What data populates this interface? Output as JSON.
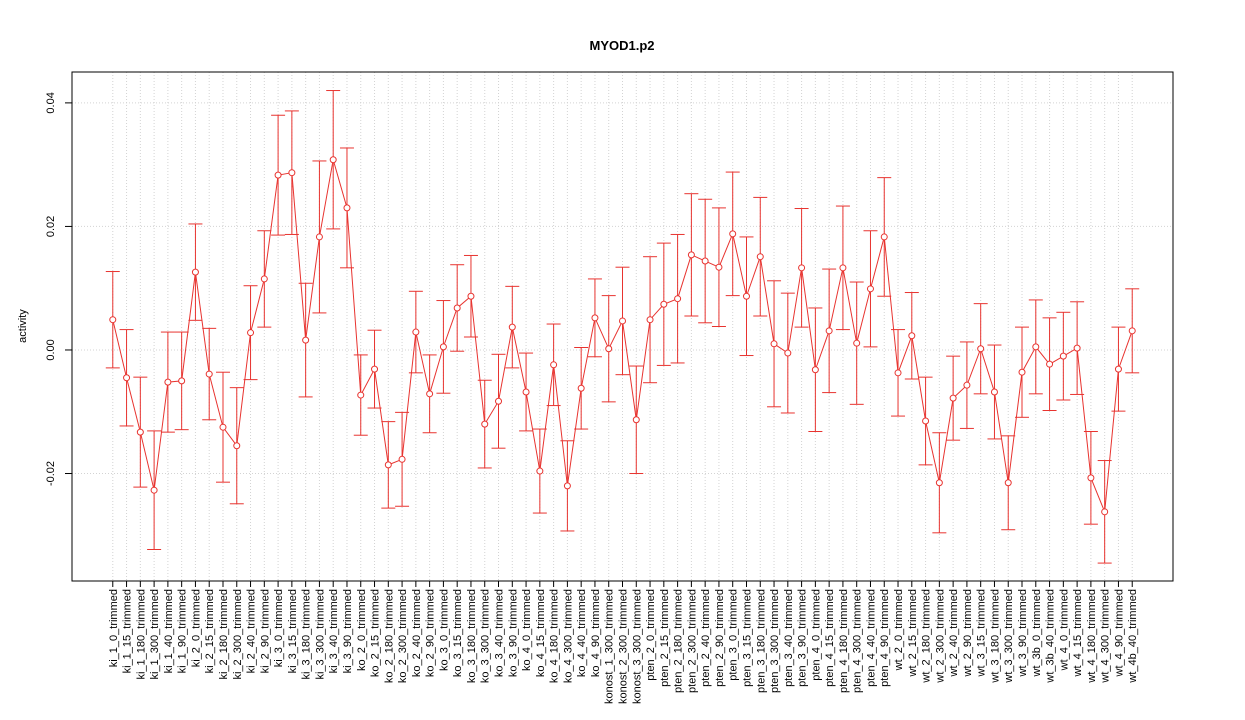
{
  "chart_data": {
    "type": "line",
    "title": "MYOD1.p2",
    "ylabel": "activity",
    "categories": [
      "ki_1_0_trimmed",
      "ki_1_15_trimmed",
      "ki_1_180_trimmed",
      "ki_1_300_trimmed",
      "ki_1_40_trimmed",
      "ki_1_90_trimmed",
      "ki_2_0_trimmed",
      "ki_2_15_trimmed",
      "ki_2_180_trimmed",
      "ki_2_300_trimmed",
      "ki_2_40_trimmed",
      "ki_2_90_trimmed",
      "ki_3_0_trimmed",
      "ki_3_15_trimmed",
      "ki_3_180_trimmed",
      "ki_3_300_trimmed",
      "ki_3_40_trimmed",
      "ki_3_90_trimmed",
      "ko_2_0_trimmed",
      "ko_2_15_trimmed",
      "ko_2_180_trimmed",
      "ko_2_300_trimmed",
      "ko_2_40_trimmed",
      "ko_2_90_trimmed",
      "ko_3_0_trimmed",
      "ko_3_15_trimmed",
      "ko_3_180_trimmed",
      "ko_3_300_trimmed",
      "ko_3_40_trimmed",
      "ko_3_90_trimmed",
      "ko_4_0_trimmed",
      "ko_4_15_trimmed",
      "ko_4_180_trimmed",
      "ko_4_300_trimmed",
      "ko_4_40_trimmed",
      "ko_4_90_trimmed",
      "konost_1_300_trimmed",
      "konost_2_300_trimmed",
      "konost_3_300_trimmed",
      "pten_2_0_trimmed",
      "pten_2_15_trimmed",
      "pten_2_180_trimmed",
      "pten_2_300_trimmed",
      "pten_2_40_trimmed",
      "pten_2_90_trimmed",
      "pten_3_0_trimmed",
      "pten_3_15_trimmed",
      "pten_3_180_trimmed",
      "pten_3_300_trimmed",
      "pten_3_40_trimmed",
      "pten_3_90_trimmed",
      "pten_4_0_trimmed",
      "pten_4_15_trimmed",
      "pten_4_180_trimmed",
      "pten_4_300_trimmed",
      "pten_4_40_trimmed",
      "pten_4_90_trimmed",
      "wt_2_0_trimmed",
      "wt_2_15_trimmed",
      "wt_2_180_trimmed",
      "wt_2_300_trimmed",
      "wt_2_40_trimmed",
      "wt_2_90_trimmed",
      "wt_3_15_trimmed",
      "wt_3_180_trimmed",
      "wt_3_300_trimmed",
      "wt_3_90_trimmed",
      "wt_3b_0_trimmed",
      "wt_3b_40_trimmed",
      "wt_4_0_trimmed",
      "wt_4_15_trimmed",
      "wt_4_180_trimmed",
      "wt_4_300_trimmed",
      "wt_4_90_trimmed",
      "wt_4b_40_trimmed"
    ],
    "series": [
      {
        "color": "#e8332f",
        "values": [
          0.0049,
          -0.0045,
          -0.0133,
          -0.0227,
          -0.0052,
          -0.005,
          0.0126,
          -0.0039,
          -0.0125,
          -0.0155,
          0.0028,
          0.0115,
          0.0283,
          0.0287,
          0.0016,
          0.0183,
          0.0308,
          0.023,
          -0.0073,
          -0.0031,
          -0.0186,
          -0.0177,
          0.0029,
          -0.0071,
          0.0005,
          0.0068,
          0.0087,
          -0.012,
          -0.0083,
          0.0037,
          -0.0068,
          -0.0196,
          -0.0024,
          -0.022,
          -0.0062,
          0.0052,
          0.0002,
          0.0047,
          -0.0113,
          0.0049,
          0.0074,
          0.0083,
          0.0154,
          0.0144,
          0.0134,
          0.0188,
          0.0087,
          0.0151,
          0.001,
          -0.0005,
          0.0133,
          -0.0032,
          0.0031,
          0.0133,
          0.0011,
          0.0099,
          0.0183,
          -0.0037,
          0.0023,
          -0.0115,
          -0.0215,
          -0.0078,
          -0.0057,
          0.0002,
          -0.0068,
          -0.0215,
          -0.0036,
          0.0005,
          -0.0023,
          -0.001,
          0.0003,
          -0.0207,
          -0.0262,
          -0.0031,
          0.0031
        ],
        "errors": [
          0.0078,
          0.0078,
          0.0089,
          0.0096,
          0.0081,
          0.0079,
          0.0078,
          0.0074,
          0.0089,
          0.0094,
          0.0076,
          0.0078,
          0.0097,
          0.01,
          0.0092,
          0.0123,
          0.0112,
          0.0097,
          0.0065,
          0.0063,
          0.007,
          0.0076,
          0.0066,
          0.0063,
          0.0075,
          0.007,
          0.0066,
          0.0071,
          0.0076,
          0.0066,
          0.0063,
          0.0068,
          0.0066,
          0.0073,
          0.0066,
          0.0063,
          0.0086,
          0.0087,
          0.0087,
          0.0102,
          0.0099,
          0.0104,
          0.0099,
          0.01,
          0.0096,
          0.01,
          0.0096,
          0.0096,
          0.0102,
          0.0097,
          0.0096,
          0.01,
          0.01,
          0.01,
          0.0099,
          0.0094,
          0.0096,
          0.007,
          0.007,
          0.0071,
          0.0081,
          0.0068,
          0.007,
          0.0073,
          0.0076,
          0.0076,
          0.0073,
          0.0076,
          0.0075,
          0.0071,
          0.0075,
          0.0075,
          0.0083,
          0.0068,
          0.0068
        ]
      }
    ],
    "ylim": [
      -0.0374,
      0.045
    ],
    "yticks": [
      -0.02,
      {
        "value": 0,
        "label": "0.00"
      },
      0.02,
      0.04
    ],
    "grid": true
  }
}
